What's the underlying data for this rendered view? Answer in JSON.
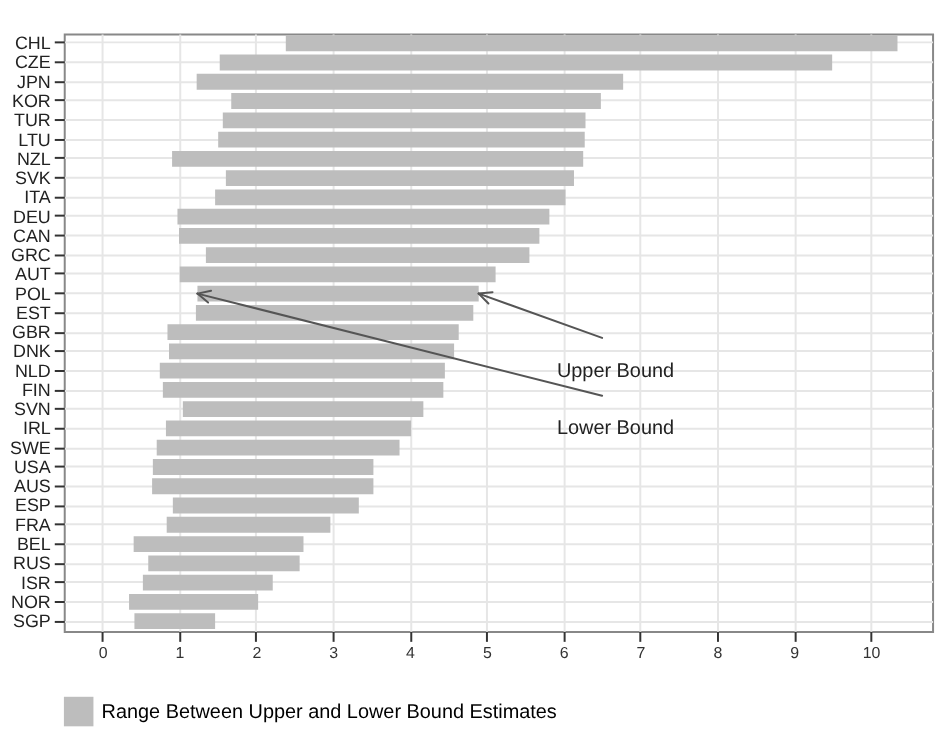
{
  "chart_data": {
    "type": "bar",
    "orientation": "horizontal",
    "categories": [
      "CHL",
      "CZE",
      "JPN",
      "KOR",
      "TUR",
      "LTU",
      "NZL",
      "SVK",
      "ITA",
      "DEU",
      "CAN",
      "GRC",
      "AUT",
      "POL",
      "EST",
      "GBR",
      "DNK",
      "NLD",
      "FIN",
      "SVN",
      "IRL",
      "SWE",
      "USA",
      "AUS",
      "ESP",
      "FRA",
      "BEL",
      "RUS",
      "ISR",
      "NOR",
      "SGP"
    ],
    "series": [
      {
        "name": "Range Between Upper and Lower Bound Estimates",
        "color": "#bdbdbd",
        "base": [
          2.39,
          1.53,
          1.23,
          1.68,
          1.57,
          1.51,
          0.91,
          1.61,
          1.47,
          0.98,
          1.0,
          1.35,
          1.01,
          1.24,
          1.22,
          0.85,
          0.87,
          0.75,
          0.79,
          1.05,
          0.83,
          0.71,
          0.66,
          0.65,
          0.92,
          0.84,
          0.41,
          0.6,
          0.53,
          0.35,
          0.42
        ],
        "values": [
          7.96,
          7.97,
          5.55,
          4.81,
          4.72,
          4.77,
          5.35,
          4.53,
          4.56,
          4.84,
          4.69,
          4.21,
          4.11,
          3.66,
          3.61,
          3.79,
          3.71,
          3.71,
          3.65,
          3.13,
          3.19,
          3.16,
          2.87,
          2.88,
          2.42,
          2.13,
          2.21,
          1.97,
          1.69,
          1.68,
          1.05
        ]
      }
    ],
    "xlim": [
      -0.5,
      10.8
    ],
    "xticks": [
      0,
      1,
      2,
      3,
      4,
      5,
      6,
      7,
      8,
      9,
      10
    ],
    "annotations": [
      {
        "text": "Upper Bound",
        "x": 4.9,
        "y": "POL"
      },
      {
        "text": "Lower Bound",
        "x": 1.24,
        "y": "POL"
      }
    ],
    "grid": true,
    "legend": "bottom"
  }
}
